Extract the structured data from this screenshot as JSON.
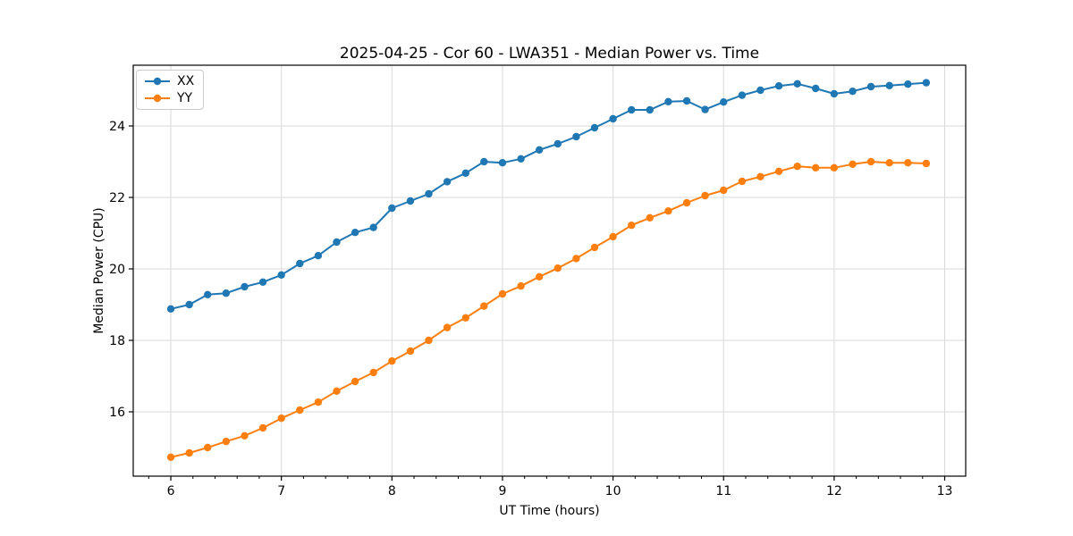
{
  "chart_data": {
    "type": "line",
    "title": "2025-04-25 - Cor 60 - LWA351 - Median Power vs. Time",
    "xlabel": "UT Time (hours)",
    "ylabel": "Median Power (CPU)",
    "xlim": [
      5.66,
      13.19
    ],
    "ylim": [
      14.2,
      25.7
    ],
    "x_ticks": [
      6,
      7,
      8,
      9,
      10,
      11,
      12,
      13
    ],
    "y_ticks": [
      16,
      18,
      20,
      22,
      24
    ],
    "x_minor_step": 0.2,
    "grid": true,
    "grid_color": "#d9d9d9",
    "axis_color": "#000000",
    "text_color": "#000000",
    "legend_position": "upper-left",
    "x": [
      6.0,
      6.167,
      6.333,
      6.5,
      6.667,
      6.833,
      7.0,
      7.167,
      7.333,
      7.5,
      7.667,
      7.833,
      8.0,
      8.167,
      8.333,
      8.5,
      8.667,
      8.833,
      9.0,
      9.167,
      9.333,
      9.5,
      9.667,
      9.833,
      10.0,
      10.167,
      10.333,
      10.5,
      10.667,
      10.833,
      11.0,
      11.167,
      11.333,
      11.5,
      11.667,
      11.833,
      12.0,
      12.167,
      12.333,
      12.5,
      12.667,
      12.833
    ],
    "series": [
      {
        "name": "XX",
        "color": "#1f77b4",
        "values": [
          18.88,
          19.0,
          19.28,
          19.32,
          19.5,
          19.63,
          19.83,
          20.15,
          20.37,
          20.75,
          21.02,
          21.16,
          21.7,
          21.9,
          22.1,
          22.44,
          22.68,
          23.0,
          22.97,
          23.08,
          23.33,
          23.5,
          23.7,
          23.95,
          24.2,
          24.45,
          24.45,
          24.68,
          24.7,
          24.46,
          24.67,
          24.86,
          25.0,
          25.12,
          25.18,
          25.05,
          24.9,
          24.97,
          25.1,
          25.13,
          25.17,
          25.21
        ]
      },
      {
        "name": "YY",
        "color": "#ff7f0e",
        "values": [
          14.73,
          14.85,
          15.0,
          15.17,
          15.33,
          15.55,
          15.82,
          16.05,
          16.27,
          16.58,
          16.85,
          17.1,
          17.42,
          17.7,
          18.0,
          18.36,
          18.63,
          18.96,
          19.3,
          19.52,
          19.78,
          20.02,
          20.29,
          20.6,
          20.9,
          21.22,
          21.43,
          21.62,
          21.85,
          22.05,
          22.2,
          22.45,
          22.58,
          22.73,
          22.87,
          22.83,
          22.83,
          22.93,
          23.0,
          22.97,
          22.97,
          22.95
        ]
      }
    ]
  }
}
